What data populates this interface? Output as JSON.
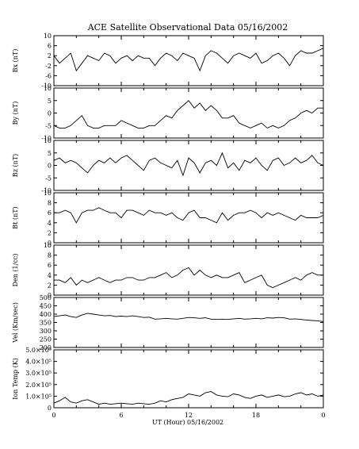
{
  "chart_data": {
    "type": "line",
    "title": "ACE Satellite Observational Data   05/16/2002",
    "xlabel": "UT (Hour)   05/16/2002",
    "x_ticks": [
      "0",
      "6",
      "12",
      "18",
      "0"
    ],
    "xlim": [
      0,
      24
    ],
    "grid": false,
    "panels": [
      {
        "ylabel": "Bx (nT)",
        "ylim": [
          -10,
          10
        ],
        "y_ticks": [
          "10",
          "6",
          "2",
          "-2",
          "-6",
          "-10"
        ],
        "x": [
          0,
          0.5,
          1,
          1.5,
          2,
          2.5,
          3,
          3.5,
          4,
          4.5,
          5,
          5.5,
          6,
          6.5,
          7,
          7.5,
          8,
          8.5,
          9,
          9.5,
          10,
          10.5,
          11,
          11.5,
          12,
          12.5,
          13,
          13.5,
          14,
          14.5,
          15,
          15.5,
          16,
          16.5,
          17,
          17.5,
          18,
          18.5,
          19,
          19.5,
          20,
          20.5,
          21,
          21.5,
          22,
          22.5,
          23,
          23.5,
          24
        ],
        "y": [
          2,
          -1,
          1,
          3,
          -4,
          -1,
          2,
          1,
          0,
          3,
          2,
          -1,
          1,
          2,
          0,
          2,
          1,
          1,
          -2,
          1,
          3,
          2,
          0,
          3,
          2,
          1,
          -4,
          2,
          4,
          3,
          1,
          -1,
          2,
          3,
          2,
          1,
          3,
          -1,
          0,
          2,
          3,
          1,
          -2,
          2,
          4,
          3,
          3,
          4,
          5
        ]
      },
      {
        "ylabel": "By (nT)",
        "ylim": [
          -10,
          10
        ],
        "y_ticks": [
          "10",
          "5",
          "0",
          "-5",
          "-10"
        ],
        "x": [
          0,
          0.5,
          1,
          1.5,
          2,
          2.5,
          3,
          3.5,
          4,
          4.5,
          5,
          5.5,
          6,
          6.5,
          7,
          7.5,
          8,
          8.5,
          9,
          9.5,
          10,
          10.5,
          11,
          11.5,
          12,
          12.5,
          13,
          13.5,
          14,
          14.5,
          15,
          15.5,
          16,
          16.5,
          17,
          17.5,
          18,
          18.5,
          19,
          19.5,
          20,
          20.5,
          21,
          21.5,
          22,
          22.5,
          23,
          23.5,
          24
        ],
        "y": [
          -5,
          -6,
          -6,
          -5,
          -3,
          -1,
          -5,
          -6,
          -6,
          -5,
          -5,
          -5,
          -3,
          -4,
          -5,
          -6,
          -6,
          -5,
          -5,
          -3,
          -1,
          -2,
          1,
          3,
          5,
          2,
          4,
          1,
          3,
          1,
          -2,
          -2,
          -1,
          -4,
          -5,
          -6,
          -5,
          -4,
          -6,
          -5,
          -6,
          -5,
          -3,
          -2,
          0,
          1,
          0,
          2,
          2
        ]
      },
      {
        "ylabel": "Bz (nT)",
        "ylim": [
          -10,
          10
        ],
        "y_ticks": [
          "10",
          "5",
          "0",
          "-5",
          "-10"
        ],
        "x": [
          0,
          0.5,
          1,
          1.5,
          2,
          2.5,
          3,
          3.5,
          4,
          4.5,
          5,
          5.5,
          6,
          6.5,
          7,
          7.5,
          8,
          8.5,
          9,
          9.5,
          10,
          10.5,
          11,
          11.5,
          12,
          12.5,
          13,
          13.5,
          14,
          14.5,
          15,
          15.5,
          16,
          16.5,
          17,
          17.5,
          18,
          18.5,
          19,
          19.5,
          20,
          20.5,
          21,
          21.5,
          22,
          22.5,
          23,
          23.5,
          24
        ],
        "y": [
          2,
          3,
          1,
          2,
          1,
          -1,
          -3,
          0,
          2,
          1,
          3,
          1,
          3,
          4,
          2,
          0,
          -2,
          2,
          3,
          1,
          0,
          -1,
          2,
          -4,
          3,
          1,
          -3,
          1,
          2,
          0,
          5,
          -1,
          1,
          -2,
          2,
          1,
          3,
          0,
          -2,
          2,
          3,
          0,
          1,
          3,
          1,
          2,
          4,
          1,
          0
        ]
      },
      {
        "ylabel": "Bt (nT)",
        "ylim": [
          0,
          10
        ],
        "y_ticks": [
          "10",
          "8",
          "6",
          "4",
          "2",
          "0"
        ],
        "x": [
          0,
          0.5,
          1,
          1.5,
          2,
          2.5,
          3,
          3.5,
          4,
          4.5,
          5,
          5.5,
          6,
          6.5,
          7,
          7.5,
          8,
          8.5,
          9,
          9.5,
          10,
          10.5,
          11,
          11.5,
          12,
          12.5,
          13,
          13.5,
          14,
          14.5,
          15,
          15.5,
          16,
          16.5,
          17,
          17.5,
          18,
          18.5,
          19,
          19.5,
          20,
          20.5,
          21,
          21.5,
          22,
          22.5,
          23,
          23.5,
          24
        ],
        "y": [
          6,
          6,
          6.5,
          6,
          4,
          6,
          6.5,
          6.5,
          7,
          6.5,
          6,
          6,
          5,
          6.5,
          6.5,
          6,
          5.5,
          6.5,
          6,
          6,
          5.5,
          6,
          5,
          4.5,
          6,
          6.5,
          5,
          5,
          4.5,
          4,
          6,
          4.5,
          5.5,
          6,
          6,
          6.5,
          6,
          5,
          6,
          5.5,
          6,
          5.5,
          5,
          4.5,
          5.5,
          5,
          5,
          5,
          5.5
        ]
      },
      {
        "ylabel": "Den (1/cc)",
        "ylim": [
          0,
          10
        ],
        "y_ticks": [
          "10",
          "8",
          "6",
          "4",
          "2",
          "0"
        ],
        "x": [
          0,
          0.5,
          1,
          1.5,
          2,
          2.5,
          3,
          3.5,
          4,
          4.5,
          5,
          5.5,
          6,
          6.5,
          7,
          7.5,
          8,
          8.5,
          9,
          9.5,
          10,
          10.5,
          11,
          11.5,
          12,
          12.5,
          13,
          13.5,
          14,
          14.5,
          15,
          15.5,
          16,
          16.5,
          17,
          17.5,
          18,
          18.5,
          19,
          19.5,
          20,
          20.5,
          21,
          21.5,
          22,
          22.5,
          23,
          23.5,
          24
        ],
        "y": [
          3,
          3,
          2.5,
          3.5,
          2,
          3,
          2.5,
          3,
          3.5,
          3,
          2.5,
          3,
          3,
          3.5,
          3.5,
          3,
          3,
          3.5,
          3.5,
          4,
          4.5,
          3.5,
          4,
          5,
          5.5,
          4,
          5,
          4,
          3.5,
          4,
          3.5,
          3.5,
          4,
          4.5,
          2.5,
          3,
          3.5,
          4,
          2,
          1.5,
          2,
          2.5,
          3,
          3.5,
          3,
          4,
          4.5,
          4,
          4
        ]
      },
      {
        "ylabel": "Vel (Km/sec)",
        "ylim": [
          200,
          500
        ],
        "y_ticks": [
          "500",
          "450",
          "400",
          "350",
          "300",
          "250",
          "200"
        ],
        "x": [
          0,
          0.5,
          1,
          1.5,
          2,
          2.5,
          3,
          3.5,
          4,
          4.5,
          5,
          5.5,
          6,
          6.5,
          7,
          7.5,
          8,
          8.5,
          9,
          9.5,
          10,
          10.5,
          11,
          11.5,
          12,
          12.5,
          13,
          13.5,
          14,
          14.5,
          15,
          15.5,
          16,
          16.5,
          17,
          17.5,
          18,
          18.5,
          19,
          19.5,
          20,
          20.5,
          21,
          21.5,
          22,
          22.5,
          23,
          23.5,
          24
        ],
        "y": [
          385,
          390,
          395,
          385,
          380,
          395,
          405,
          400,
          395,
          390,
          392,
          385,
          388,
          385,
          390,
          385,
          380,
          382,
          370,
          372,
          375,
          372,
          370,
          375,
          380,
          378,
          375,
          378,
          370,
          368,
          370,
          368,
          372,
          375,
          370,
          372,
          375,
          372,
          378,
          376,
          380,
          378,
          370,
          372,
          368,
          365,
          362,
          360,
          355
        ]
      },
      {
        "ylabel": "Ion Temp (K)",
        "ylim": [
          0,
          500000
        ],
        "y_ticks": [
          "5.0×10⁵",
          "4.0×10⁵",
          "3.0×10⁵",
          "2.0×10⁵",
          "1.0×10⁵",
          "0"
        ],
        "x": [
          0,
          0.5,
          1,
          1.5,
          2,
          2.5,
          3,
          3.5,
          4,
          4.5,
          5,
          5.5,
          6,
          6.5,
          7,
          7.5,
          8,
          8.5,
          9,
          9.5,
          10,
          10.5,
          11,
          11.5,
          12,
          12.5,
          13,
          13.5,
          14,
          14.5,
          15,
          15.5,
          16,
          16.5,
          17,
          17.5,
          18,
          18.5,
          19,
          19.5,
          20,
          20.5,
          21,
          21.5,
          22,
          22.5,
          23,
          23.5,
          24
        ],
        "y": [
          40000,
          60000,
          90000,
          50000,
          40000,
          60000,
          70000,
          50000,
          30000,
          40000,
          30000,
          35000,
          40000,
          35000,
          30000,
          40000,
          35000,
          30000,
          40000,
          60000,
          50000,
          70000,
          80000,
          90000,
          120000,
          110000,
          100000,
          130000,
          140000,
          110000,
          100000,
          95000,
          120000,
          110000,
          90000,
          80000,
          100000,
          110000,
          90000,
          100000,
          110000,
          95000,
          100000,
          120000,
          130000,
          110000,
          120000,
          100000,
          110000
        ]
      }
    ]
  }
}
